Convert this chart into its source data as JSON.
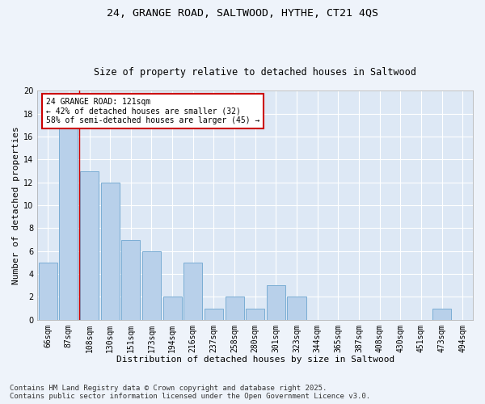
{
  "title": "24, GRANGE ROAD, SALTWOOD, HYTHE, CT21 4QS",
  "subtitle": "Size of property relative to detached houses in Saltwood",
  "xlabel": "Distribution of detached houses by size in Saltwood",
  "ylabel": "Number of detached properties",
  "categories": [
    "66sqm",
    "87sqm",
    "108sqm",
    "130sqm",
    "151sqm",
    "173sqm",
    "194sqm",
    "216sqm",
    "237sqm",
    "258sqm",
    "280sqm",
    "301sqm",
    "323sqm",
    "344sqm",
    "365sqm",
    "387sqm",
    "408sqm",
    "430sqm",
    "451sqm",
    "473sqm",
    "494sqm"
  ],
  "values": [
    5,
    17,
    13,
    12,
    7,
    6,
    2,
    5,
    1,
    2,
    1,
    3,
    2,
    0,
    0,
    0,
    0,
    0,
    0,
    1,
    0
  ],
  "bar_color": "#b8d0ea",
  "bar_edge_color": "#7aadd4",
  "annotation_text": "24 GRANGE ROAD: 121sqm\n← 42% of detached houses are smaller (32)\n58% of semi-detached houses are larger (45) →",
  "annotation_box_color": "#ffffff",
  "annotation_box_edge": "#cc0000",
  "marker_line_color": "#cc0000",
  "ylim": [
    0,
    20
  ],
  "yticks": [
    0,
    2,
    4,
    6,
    8,
    10,
    12,
    14,
    16,
    18,
    20
  ],
  "footer": "Contains HM Land Registry data © Crown copyright and database right 2025.\nContains public sector information licensed under the Open Government Licence v3.0.",
  "background_color": "#dde8f5",
  "fig_background_color": "#eef3fa",
  "grid_color": "#ffffff",
  "title_fontsize": 9.5,
  "subtitle_fontsize": 8.5,
  "axis_label_fontsize": 8,
  "tick_fontsize": 7,
  "annotation_fontsize": 7,
  "footer_fontsize": 6.5
}
